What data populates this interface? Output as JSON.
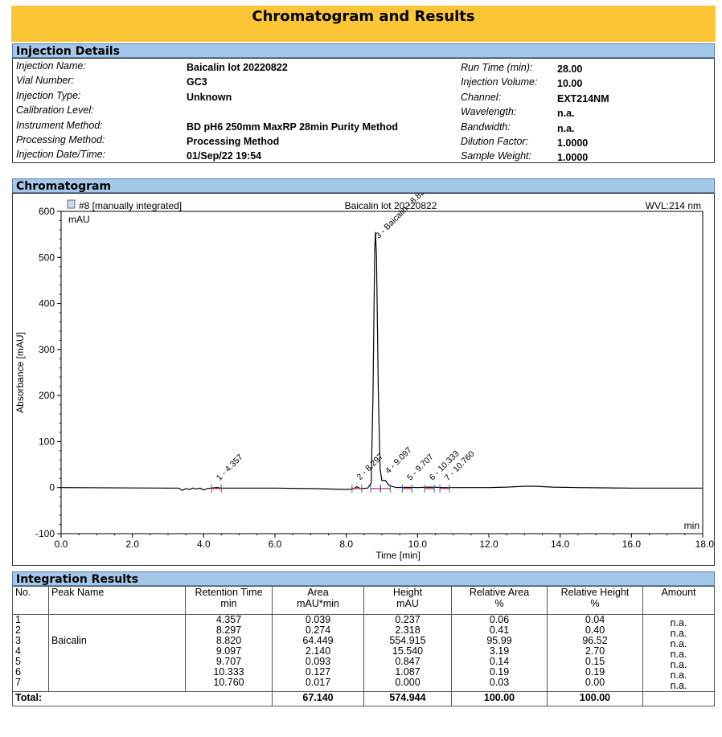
{
  "header": {
    "title": "Chromatogram and Results"
  },
  "injection_details": {
    "heading": "Injection Details",
    "left": [
      {
        "label": "Injection Name:",
        "value": "Baicalin lot 20220822"
      },
      {
        "label": "Vial Number:",
        "value": "GC3"
      },
      {
        "label": "Injection Type:",
        "value": "Unknown"
      },
      {
        "label": "Calibration Level:",
        "value": ""
      },
      {
        "label": "Instrument Method:",
        "value": "BD pH6 250mm MaxRP 28min Purity Method"
      },
      {
        "label": "Processing Method:",
        "value": "Processing Method"
      },
      {
        "label": "Injection Date/Time:",
        "value": "01/Sep/22 19:54"
      }
    ],
    "right": [
      {
        "label": "Run Time (min):",
        "value": "28.00"
      },
      {
        "label": "Injection Volume:",
        "value": "10.00"
      },
      {
        "label": "Channel:",
        "value": "EXT214NM"
      },
      {
        "label": "Wavelength:",
        "value": "n.a."
      },
      {
        "label": "Bandwidth:",
        "value": "n.a."
      },
      {
        "label": "Dilution Factor:",
        "value": "1.0000"
      },
      {
        "label": "Sample Weight:",
        "value": "1.0000"
      }
    ]
  },
  "chromatogram": {
    "heading": "Chromatogram",
    "trace_label": "#8 [manually integrated]",
    "sample_label": "Baicalin lot 20220822",
    "wvl_label": "WVL:214 nm",
    "y_unit": "mAU",
    "x_unit": "min",
    "chart_data": {
      "type": "line",
      "xlabel": "Time [min]",
      "ylabel": "Absorbance [mAU]",
      "xlim": [
        0,
        18
      ],
      "ylim": [
        -100,
        600
      ],
      "x_ticks": [
        "0.0",
        "2.0",
        "4.0",
        "6.0",
        "8.0",
        "10.0",
        "12.0",
        "14.0",
        "16.0",
        "18.0"
      ],
      "y_ticks": [
        "-100",
        "0",
        "100",
        "200",
        "300",
        "400",
        "500",
        "600"
      ],
      "series": [
        {
          "points": [
            [
              0,
              0
            ],
            [
              3,
              -1
            ],
            [
              3.3,
              -1
            ],
            [
              3.4,
              -6
            ],
            [
              3.5,
              -2
            ],
            [
              3.6,
              -4
            ],
            [
              3.7,
              -1
            ],
            [
              3.8,
              -3
            ],
            [
              3.9,
              -1
            ],
            [
              4.0,
              -5
            ],
            [
              4.1,
              -2
            ],
            [
              4.2,
              -1
            ],
            [
              4.357,
              0.2
            ],
            [
              4.5,
              -1
            ],
            [
              5,
              -1
            ],
            [
              6,
              -1
            ],
            [
              7,
              -2
            ],
            [
              7.5,
              -3
            ],
            [
              8,
              -4
            ],
            [
              8.2,
              -3
            ],
            [
              8.297,
              2
            ],
            [
              8.4,
              -2
            ],
            [
              8.6,
              -1
            ],
            [
              8.7,
              10
            ],
            [
              8.75,
              200
            ],
            [
              8.8,
              520
            ],
            [
              8.82,
              555
            ],
            [
              8.85,
              500
            ],
            [
              8.9,
              200
            ],
            [
              8.95,
              40
            ],
            [
              9.0,
              15
            ],
            [
              9.097,
              15.5
            ],
            [
              9.2,
              5
            ],
            [
              9.4,
              0
            ],
            [
              9.707,
              0.8
            ],
            [
              10,
              0
            ],
            [
              10.333,
              1
            ],
            [
              10.76,
              0
            ],
            [
              11,
              0
            ],
            [
              12,
              0
            ],
            [
              12.5,
              1
            ],
            [
              13,
              3
            ],
            [
              13.3,
              3
            ],
            [
              13.8,
              1
            ],
            [
              14.5,
              0
            ],
            [
              16,
              -1
            ],
            [
              18,
              -1
            ]
          ]
        }
      ],
      "peaks": [
        {
          "label": "1 - 4.357",
          "x": 4.357
        },
        {
          "label": "2 - 8.297",
          "x": 8.297
        },
        {
          "label": "3 - Baicalin - 8.820",
          "x": 8.82
        },
        {
          "label": "4 - 9.097",
          "x": 9.097
        },
        {
          "label": "5 - 9.707",
          "x": 9.707
        },
        {
          "label": "6 - 10.333",
          "x": 10.333
        },
        {
          "label": "7 - 10.760",
          "x": 10.76
        }
      ]
    }
  },
  "integration": {
    "heading": "Integration Results",
    "headers": {
      "no": "No.",
      "name": "Peak Name",
      "rt": "Retention Time",
      "rt_unit": "min",
      "area": "Area",
      "area_unit": "mAU*min",
      "height": "Height",
      "height_unit": "mAU",
      "rel_area": "Relative Area",
      "rel_area_unit": "%",
      "rel_height": "Relative Height",
      "rel_height_unit": "%",
      "amount": "Amount"
    },
    "rows": [
      {
        "no": "1",
        "name": "",
        "rt": "4.357",
        "area": "0.039",
        "height": "0.237",
        "rel_area": "0.06",
        "rel_height": "0.04",
        "amount": "n.a."
      },
      {
        "no": "2",
        "name": "",
        "rt": "8.297",
        "area": "0.274",
        "height": "2.318",
        "rel_area": "0.41",
        "rel_height": "0.40",
        "amount": "n.a."
      },
      {
        "no": "3",
        "name": "Baicalin",
        "rt": "8.820",
        "area": "64.449",
        "height": "554.915",
        "rel_area": "95.99",
        "rel_height": "96.52",
        "amount": "n.a."
      },
      {
        "no": "4",
        "name": "",
        "rt": "9.097",
        "area": "2.140",
        "height": "15.540",
        "rel_area": "3.19",
        "rel_height": "2.70",
        "amount": "n.a."
      },
      {
        "no": "5",
        "name": "",
        "rt": "9.707",
        "area": "0.093",
        "height": "0.847",
        "rel_area": "0.14",
        "rel_height": "0.15",
        "amount": "n.a."
      },
      {
        "no": "6",
        "name": "",
        "rt": "10.333",
        "area": "0.127",
        "height": "1.087",
        "rel_area": "0.19",
        "rel_height": "0.19",
        "amount": "n.a."
      },
      {
        "no": "7",
        "name": "",
        "rt": "10.760",
        "area": "0.017",
        "height": "0.000",
        "rel_area": "0.03",
        "rel_height": "0.00",
        "amount": "n.a."
      }
    ],
    "total": {
      "label": "Total:",
      "area": "67.140",
      "height": "574.944",
      "rel_area": "100.00",
      "rel_height": "100.00"
    }
  }
}
